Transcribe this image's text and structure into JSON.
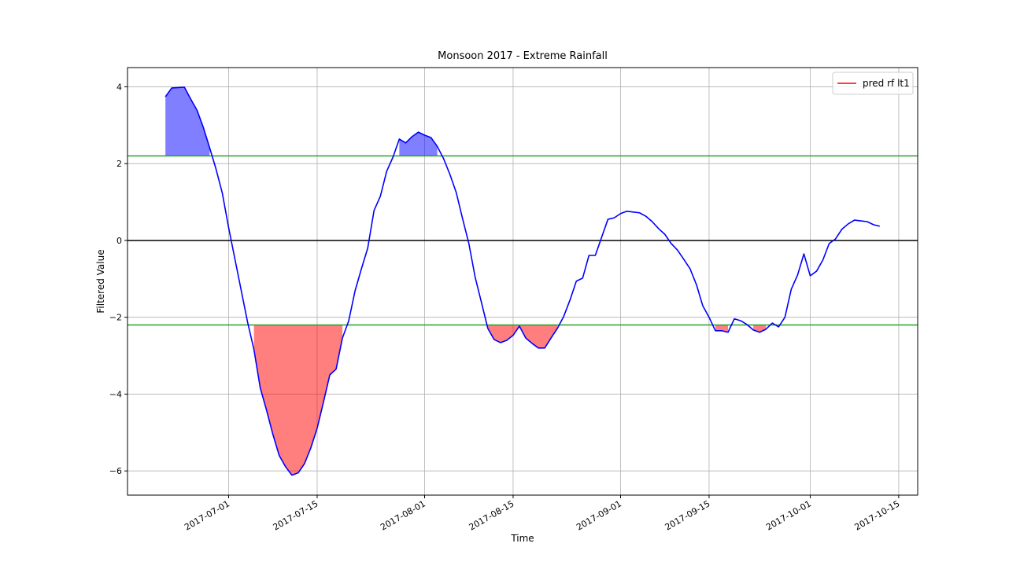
{
  "chart_data": {
    "type": "line",
    "title": "Monsoon 2017 - Extreme Rainfall",
    "x_label": "Time",
    "y_label": "Filtered Value",
    "x": [
      "2017-06-21",
      "2017-06-22",
      "2017-06-23",
      "2017-06-24",
      "2017-06-25",
      "2017-06-26",
      "2017-06-27",
      "2017-06-28",
      "2017-06-29",
      "2017-06-30",
      "2017-07-01",
      "2017-07-02",
      "2017-07-03",
      "2017-07-04",
      "2017-07-05",
      "2017-07-06",
      "2017-07-07",
      "2017-07-08",
      "2017-07-09",
      "2017-07-10",
      "2017-07-11",
      "2017-07-12",
      "2017-07-13",
      "2017-07-14",
      "2017-07-15",
      "2017-07-16",
      "2017-07-17",
      "2017-07-18",
      "2017-07-19",
      "2017-07-20",
      "2017-07-21",
      "2017-07-22",
      "2017-07-23",
      "2017-07-24",
      "2017-07-25",
      "2017-07-26",
      "2017-07-27",
      "2017-07-28",
      "2017-07-29",
      "2017-07-30",
      "2017-07-31",
      "2017-08-01",
      "2017-08-02",
      "2017-08-03",
      "2017-08-04",
      "2017-08-05",
      "2017-08-06",
      "2017-08-07",
      "2017-08-08",
      "2017-08-09",
      "2017-08-10",
      "2017-08-11",
      "2017-08-12",
      "2017-08-13",
      "2017-08-14",
      "2017-08-15",
      "2017-08-16",
      "2017-08-17",
      "2017-08-18",
      "2017-08-19",
      "2017-08-20",
      "2017-08-21",
      "2017-08-22",
      "2017-08-23",
      "2017-08-24",
      "2017-08-25",
      "2017-08-26",
      "2017-08-27",
      "2017-08-28",
      "2017-08-29",
      "2017-08-30",
      "2017-08-31",
      "2017-09-01",
      "2017-09-02",
      "2017-09-03",
      "2017-09-04",
      "2017-09-05",
      "2017-09-06",
      "2017-09-07",
      "2017-09-08",
      "2017-09-09",
      "2017-09-10",
      "2017-09-11",
      "2017-09-12",
      "2017-09-13",
      "2017-09-14",
      "2017-09-15",
      "2017-09-16",
      "2017-09-17",
      "2017-09-18",
      "2017-09-19",
      "2017-09-20",
      "2017-09-21",
      "2017-09-22",
      "2017-09-23",
      "2017-09-24",
      "2017-09-25",
      "2017-09-26",
      "2017-09-27",
      "2017-09-28",
      "2017-09-29",
      "2017-09-30",
      "2017-10-01",
      "2017-10-02",
      "2017-10-03",
      "2017-10-04",
      "2017-10-05",
      "2017-10-06",
      "2017-10-07",
      "2017-10-08",
      "2017-10-09",
      "2017-10-10",
      "2017-10-11",
      "2017-10-12"
    ],
    "series": [
      {
        "name": "pred rf lt1",
        "color": "#0000ff",
        "legend_color": "#ff0000",
        "values": [
          3.74,
          3.97,
          3.98,
          3.99,
          3.68,
          3.39,
          2.94,
          2.41,
          1.86,
          1.23,
          0.33,
          -0.49,
          -1.31,
          -2.13,
          -2.84,
          -3.84,
          -4.42,
          -5.05,
          -5.6,
          -5.89,
          -6.11,
          -6.05,
          -5.81,
          -5.4,
          -4.89,
          -4.21,
          -3.5,
          -3.35,
          -2.54,
          -2.09,
          -1.31,
          -0.74,
          -0.2,
          0.78,
          1.15,
          1.8,
          2.17,
          2.64,
          2.54,
          2.7,
          2.82,
          2.74,
          2.68,
          2.45,
          2.13,
          1.72,
          1.25,
          0.57,
          -0.08,
          -0.96,
          -1.62,
          -2.29,
          -2.58,
          -2.66,
          -2.6,
          -2.47,
          -2.23,
          -2.54,
          -2.68,
          -2.8,
          -2.8,
          -2.54,
          -2.29,
          -1.98,
          -1.55,
          -1.06,
          -0.98,
          -0.39,
          -0.39,
          0.08,
          0.55,
          0.59,
          0.7,
          0.76,
          0.74,
          0.72,
          0.63,
          0.49,
          0.31,
          0.16,
          -0.08,
          -0.25,
          -0.49,
          -0.74,
          -1.15,
          -1.7,
          -2.0,
          -2.35,
          -2.35,
          -2.39,
          -2.04,
          -2.09,
          -2.19,
          -2.33,
          -2.39,
          -2.31,
          -2.15,
          -2.25,
          -2.0,
          -1.27,
          -0.9,
          -0.35,
          -0.92,
          -0.8,
          -0.51,
          -0.08,
          0.04,
          0.29,
          0.43,
          0.53,
          0.51,
          0.49,
          0.41,
          0.37
        ]
      }
    ],
    "hlines": [
      {
        "value": 0,
        "color": "#000000"
      },
      {
        "value": 2.2,
        "color": "#2ca02c"
      },
      {
        "value": -2.2,
        "color": "#2ca02c"
      }
    ],
    "fills": [
      {
        "side": "above",
        "threshold": 2.2,
        "color": "#0000ff"
      },
      {
        "side": "below",
        "threshold": -2.2,
        "color": "#ff0000"
      }
    ],
    "xlim": [
      "2017-06-15",
      "2017-10-18"
    ],
    "xticks": [
      "2017-07-01",
      "2017-07-15",
      "2017-08-01",
      "2017-08-15",
      "2017-09-01",
      "2017-09-15",
      "2017-10-01",
      "2017-10-15"
    ],
    "ylim": [
      -6.63,
      4.5
    ],
    "yticks": [
      {
        "value": -6,
        "label": "−6"
      },
      {
        "value": -4,
        "label": "−4"
      },
      {
        "value": -2,
        "label": "−2"
      },
      0,
      2,
      4
    ],
    "grid": true,
    "legend": "upper right"
  }
}
